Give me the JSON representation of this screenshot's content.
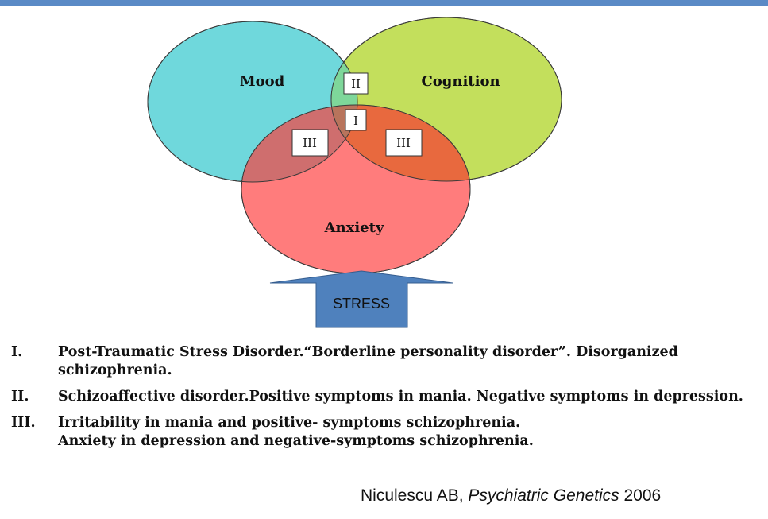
{
  "diagram": {
    "circles": {
      "mood": {
        "label": "Mood",
        "color": "#6fd8dc"
      },
      "cognition": {
        "label": "Cognition",
        "color": "#c3df5c"
      },
      "anxiety": {
        "label": "Anxiety",
        "color": "#ff6a6a"
      }
    },
    "overlap_labels": {
      "mood_cognition": "II",
      "all_three": "I",
      "mood_anxiety": "III",
      "cognition_anxiety": "III"
    },
    "stress_label": "STRESS",
    "stress_color": "#4f81bd"
  },
  "legend": [
    {
      "numeral": "I.",
      "lines": [
        "Post-Traumatic Stress Disorder.“Borderline personality disorder”. Disorganized",
        "schizophrenia."
      ]
    },
    {
      "numeral": "II.",
      "lines": [
        "Schizoaffective disorder.Positive symptoms in mania. Negative symptoms in depression."
      ]
    },
    {
      "numeral": "III.",
      "lines": [
        "Irritability in mania and positive- symptoms schizophrenia.",
        "Anxiety in depression and negative-symptoms schizophrenia."
      ]
    }
  ],
  "citation": {
    "author": "Niculescu AB,",
    "journal": "Psychiatric Genetics",
    "year": "2006"
  }
}
